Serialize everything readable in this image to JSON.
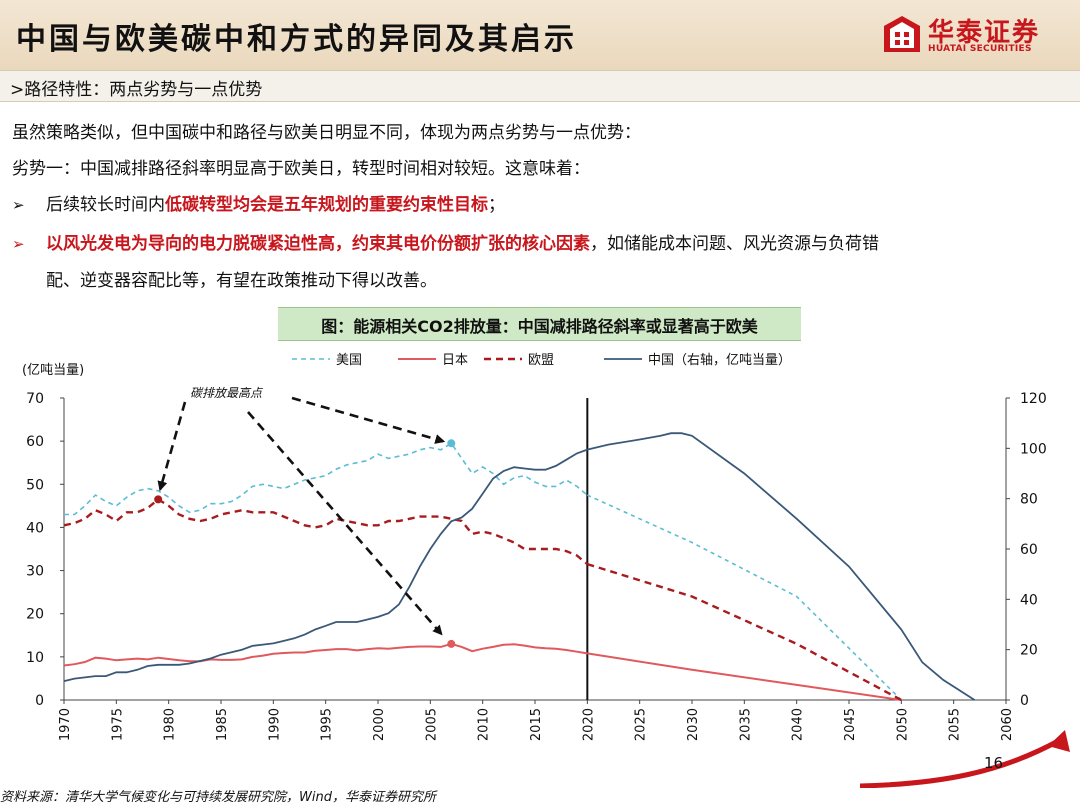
{
  "header": {
    "title": "中国与欧美碳中和方式的异同及其启示",
    "logo_cn": "华泰证券",
    "logo_en": "HUATAI SECURITIES"
  },
  "subtitle": ">路径特性：两点劣势与一点优势",
  "body": {
    "line1": "虽然策略类似，但中国碳中和路径与欧美日明显不同，体现为两点劣势与一点优势：",
    "line2": "劣势一：中国减排路径斜率明显高于欧美日，转型时间相对较短。这意味着：",
    "bullet1_pre": "后续较长时间内",
    "bullet1_red": "低碳转型均会是五年规划的重要约束性目标",
    "bullet1_post": "；",
    "bullet2_red": "以风光发电为导向的电力脱碳紧迫性高，约束其电价份额扩张的核心因素",
    "bullet2_post": "，如储能成本问题、风光资源与负荷错",
    "bullet2_line2": "配、逆变器容配比等，有望在政策推动下得以改善。"
  },
  "caption": "图：能源相关CO2排放量：中国减排路径斜率或显著高于欧美",
  "chart_data": {
    "type": "line",
    "title": "",
    "ylabel": "(亿吨当量)",
    "ylim": [
      0,
      70
    ],
    "y2lim": [
      0,
      120
    ],
    "xlim": [
      1970,
      2060
    ],
    "yticks": [
      "0",
      "10",
      "20",
      "30",
      "40",
      "50",
      "60",
      "70"
    ],
    "y2ticks": [
      "0",
      "20",
      "40",
      "60",
      "80",
      "100",
      "120"
    ],
    "xticks": [
      "1970",
      "1975",
      "1980",
      "1985",
      "1990",
      "1995",
      "2000",
      "2005",
      "2010",
      "2015",
      "2020",
      "2025",
      "2030",
      "2035",
      "2040",
      "2045",
      "2050",
      "2055",
      "2060"
    ],
    "vline_x": 2020,
    "annotation": "碳排放最高点",
    "legend": [
      "美国",
      "日本",
      "欧盟",
      "中国（右轴，亿吨当量）"
    ],
    "colors": {
      "us": "#5bbcd6",
      "jp": "#e0595c",
      "eu": "#a81c1f",
      "cn": "#3a5877"
    },
    "series": [
      {
        "name": "美国",
        "axis": "left",
        "points": [
          [
            1970,
            43
          ],
          [
            1971,
            43
          ],
          [
            1972,
            45
          ],
          [
            1973,
            47.5
          ],
          [
            1974,
            46
          ],
          [
            1975,
            45
          ],
          [
            1976,
            47
          ],
          [
            1977,
            48.5
          ],
          [
            1978,
            49
          ],
          [
            1979,
            48.5
          ],
          [
            1980,
            47
          ],
          [
            1981,
            45
          ],
          [
            1982,
            43.5
          ],
          [
            1983,
            44
          ],
          [
            1984,
            45.5
          ],
          [
            1985,
            45.5
          ],
          [
            1986,
            46
          ],
          [
            1987,
            47.5
          ],
          [
            1988,
            49.5
          ],
          [
            1989,
            50
          ],
          [
            1990,
            49.5
          ],
          [
            1991,
            49
          ],
          [
            1992,
            50
          ],
          [
            1993,
            51
          ],
          [
            1994,
            51.5
          ],
          [
            1995,
            52
          ],
          [
            1996,
            53.5
          ],
          [
            1997,
            54.5
          ],
          [
            1998,
            55
          ],
          [
            1999,
            55.5
          ],
          [
            2000,
            57
          ],
          [
            2001,
            56
          ],
          [
            2002,
            56.5
          ],
          [
            2003,
            57
          ],
          [
            2004,
            58
          ],
          [
            2005,
            58.5
          ],
          [
            2006,
            58
          ],
          [
            2007,
            59.5
          ],
          [
            2008,
            56
          ],
          [
            2009,
            52.5
          ],
          [
            2010,
            54
          ],
          [
            2011,
            52.5
          ],
          [
            2012,
            50
          ],
          [
            2013,
            51.5
          ],
          [
            2014,
            52
          ],
          [
            2015,
            50.5
          ],
          [
            2016,
            49.5
          ],
          [
            2017,
            49.5
          ],
          [
            2018,
            51
          ],
          [
            2019,
            49.5
          ],
          [
            2020,
            47.5
          ],
          [
            2030,
            36.5
          ],
          [
            2040,
            24
          ],
          [
            2050,
            0
          ]
        ]
      },
      {
        "name": "日本",
        "axis": "left",
        "points": [
          [
            1970,
            8
          ],
          [
            1971,
            8.3
          ],
          [
            1972,
            8.8
          ],
          [
            1973,
            9.8
          ],
          [
            1974,
            9.6
          ],
          [
            1975,
            9.2
          ],
          [
            1976,
            9.4
          ],
          [
            1977,
            9.6
          ],
          [
            1978,
            9.4
          ],
          [
            1979,
            9.8
          ],
          [
            1980,
            9.5
          ],
          [
            1981,
            9.2
          ],
          [
            1982,
            9
          ],
          [
            1983,
            9
          ],
          [
            1984,
            9.4
          ],
          [
            1985,
            9.3
          ],
          [
            1986,
            9.3
          ],
          [
            1987,
            9.4
          ],
          [
            1988,
            10
          ],
          [
            1989,
            10.3
          ],
          [
            1990,
            10.7
          ],
          [
            1991,
            10.9
          ],
          [
            1992,
            11
          ],
          [
            1993,
            11
          ],
          [
            1994,
            11.4
          ],
          [
            1995,
            11.6
          ],
          [
            1996,
            11.8
          ],
          [
            1997,
            11.8
          ],
          [
            1998,
            11.5
          ],
          [
            1999,
            11.8
          ],
          [
            2000,
            12
          ],
          [
            2001,
            11.9
          ],
          [
            2002,
            12.1
          ],
          [
            2003,
            12.3
          ],
          [
            2004,
            12.4
          ],
          [
            2005,
            12.4
          ],
          [
            2006,
            12.3
          ],
          [
            2007,
            13
          ],
          [
            2008,
            12.3
          ],
          [
            2009,
            11.3
          ],
          [
            2010,
            11.9
          ],
          [
            2011,
            12.3
          ],
          [
            2012,
            12.8
          ],
          [
            2013,
            12.9
          ],
          [
            2014,
            12.6
          ],
          [
            2015,
            12.2
          ],
          [
            2016,
            12
          ],
          [
            2017,
            11.9
          ],
          [
            2018,
            11.6
          ],
          [
            2019,
            11.2
          ],
          [
            2020,
            10.8
          ],
          [
            2030,
            7
          ],
          [
            2040,
            3.5
          ],
          [
            2050,
            0
          ]
        ]
      },
      {
        "name": "欧盟",
        "axis": "left",
        "points": [
          [
            1970,
            40.5
          ],
          [
            1971,
            41
          ],
          [
            1972,
            42
          ],
          [
            1973,
            44
          ],
          [
            1974,
            43
          ],
          [
            1975,
            41.5
          ],
          [
            1976,
            43.5
          ],
          [
            1977,
            43.5
          ],
          [
            1978,
            44.5
          ],
          [
            1979,
            46.5
          ],
          [
            1980,
            45
          ],
          [
            1981,
            43
          ],
          [
            1982,
            42
          ],
          [
            1983,
            41.5
          ],
          [
            1984,
            42
          ],
          [
            1985,
            43
          ],
          [
            1986,
            43.5
          ],
          [
            1987,
            44
          ],
          [
            1988,
            43.5
          ],
          [
            1989,
            43.5
          ],
          [
            1990,
            43.5
          ],
          [
            1991,
            42.5
          ],
          [
            1992,
            41.5
          ],
          [
            1993,
            40.5
          ],
          [
            1994,
            40
          ],
          [
            1995,
            40.5
          ],
          [
            1996,
            42
          ],
          [
            1997,
            41.5
          ],
          [
            1998,
            41
          ],
          [
            1999,
            40.5
          ],
          [
            2000,
            40.5
          ],
          [
            2001,
            41.5
          ],
          [
            2002,
            41.5
          ],
          [
            2003,
            42
          ],
          [
            2004,
            42.5
          ],
          [
            2005,
            42.5
          ],
          [
            2006,
            42.5
          ],
          [
            2007,
            42
          ],
          [
            2008,
            41.5
          ],
          [
            2009,
            38.5
          ],
          [
            2010,
            39
          ],
          [
            2011,
            38.5
          ],
          [
            2012,
            37.5
          ],
          [
            2013,
            36.5
          ],
          [
            2014,
            35
          ],
          [
            2015,
            35
          ],
          [
            2016,
            35
          ],
          [
            2017,
            35
          ],
          [
            2018,
            34.5
          ],
          [
            2019,
            33.5
          ],
          [
            2020,
            31.5
          ],
          [
            2030,
            24
          ],
          [
            2040,
            13
          ],
          [
            2050,
            0
          ]
        ]
      },
      {
        "name": "中国（右轴，亿吨当量）",
        "axis": "right",
        "points": [
          [
            1970,
            7.5
          ],
          [
            1971,
            8.5
          ],
          [
            1972,
            9
          ],
          [
            1973,
            9.5
          ],
          [
            1974,
            9.5
          ],
          [
            1975,
            11
          ],
          [
            1976,
            11
          ],
          [
            1977,
            12
          ],
          [
            1978,
            13.5
          ],
          [
            1979,
            14
          ],
          [
            1980,
            14
          ],
          [
            1981,
            14
          ],
          [
            1982,
            14.5
          ],
          [
            1983,
            15.5
          ],
          [
            1984,
            16.5
          ],
          [
            1985,
            18
          ],
          [
            1986,
            19
          ],
          [
            1987,
            20
          ],
          [
            1988,
            21.5
          ],
          [
            1989,
            22
          ],
          [
            1990,
            22.5
          ],
          [
            1991,
            23.5
          ],
          [
            1992,
            24.5
          ],
          [
            1993,
            26
          ],
          [
            1994,
            28
          ],
          [
            1995,
            29.5
          ],
          [
            1996,
            31
          ],
          [
            1997,
            31
          ],
          [
            1998,
            31
          ],
          [
            1999,
            32
          ],
          [
            2000,
            33
          ],
          [
            2001,
            34.5
          ],
          [
            2002,
            38
          ],
          [
            2003,
            45
          ],
          [
            2004,
            53
          ],
          [
            2005,
            60
          ],
          [
            2006,
            66
          ],
          [
            2007,
            71
          ],
          [
            2008,
            72.5
          ],
          [
            2009,
            76
          ],
          [
            2010,
            82
          ],
          [
            2011,
            88
          ],
          [
            2012,
            91
          ],
          [
            2013,
            92.5
          ],
          [
            2014,
            92
          ],
          [
            2015,
            91.5
          ],
          [
            2016,
            91.5
          ],
          [
            2017,
            93
          ],
          [
            2018,
            95.5
          ],
          [
            2019,
            98
          ],
          [
            2020,
            99.5
          ],
          [
            2022,
            101.5
          ],
          [
            2025,
            103.5
          ],
          [
            2027,
            105
          ],
          [
            2028,
            106
          ],
          [
            2029,
            106
          ],
          [
            2030,
            105
          ],
          [
            2035,
            90
          ],
          [
            2040,
            72
          ],
          [
            2045,
            53
          ],
          [
            2050,
            28
          ],
          [
            2052,
            15
          ],
          [
            2054,
            8
          ],
          [
            2057,
            0
          ]
        ]
      }
    ],
    "peak_markers": [
      {
        "series": "欧盟",
        "x": 1979,
        "y": 46.5
      },
      {
        "series": "美国",
        "x": 2007,
        "y": 59.5
      },
      {
        "series": "日本",
        "x": 2007,
        "y": 13
      }
    ]
  },
  "footer": "资料来源：清华大学气候变化与可持续发展研究院，Wind，华泰证券研究所",
  "page_number": "16"
}
